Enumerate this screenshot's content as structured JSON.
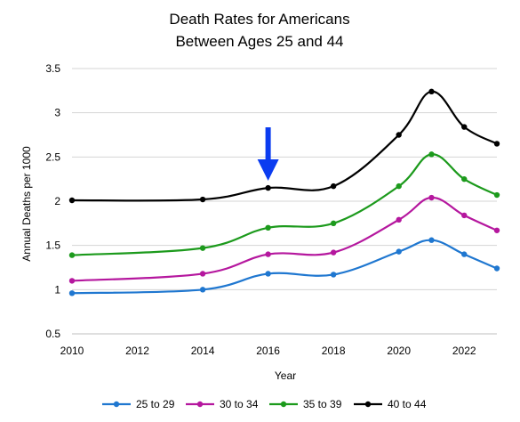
{
  "chart_data": {
    "type": "line",
    "title": [
      "Death Rates for Americans",
      "Between Ages 25 and 44"
    ],
    "xlabel": "Year",
    "ylabel": "Annual Deaths per 1000",
    "xlim": [
      2010,
      2023
    ],
    "ylim": [
      0.5,
      3.5
    ],
    "x_ticks": [
      "2010",
      "2012",
      "2014",
      "2016",
      "2018",
      "2020",
      "2022"
    ],
    "y_ticks": [
      "0.5",
      "1",
      "1.5",
      "2",
      "2.5",
      "3",
      "3.5"
    ],
    "grid": "horizontal",
    "legend_position": "bottom",
    "smooth": true,
    "annotation": {
      "type": "arrow",
      "x": 2016,
      "color": "#0b3cf0"
    },
    "x": [
      2010,
      2014,
      2016,
      2018,
      2020,
      2021,
      2022,
      2023
    ],
    "series": [
      {
        "name": "25 to 29",
        "color": "#1f77d0",
        "values": [
          0.96,
          1.0,
          1.18,
          1.17,
          1.43,
          1.56,
          1.4,
          1.24
        ]
      },
      {
        "name": "30 to 34",
        "color": "#b5179e",
        "values": [
          1.1,
          1.18,
          1.4,
          1.42,
          1.79,
          2.04,
          1.84,
          1.67
        ]
      },
      {
        "name": "35 to 39",
        "color": "#1c9a1c",
        "values": [
          1.39,
          1.47,
          1.7,
          1.75,
          2.17,
          2.53,
          2.25,
          2.07
        ]
      },
      {
        "name": "40 to 44",
        "color": "#000000",
        "values": [
          2.01,
          2.02,
          2.15,
          2.17,
          2.75,
          3.24,
          2.84,
          2.65
        ]
      }
    ]
  }
}
